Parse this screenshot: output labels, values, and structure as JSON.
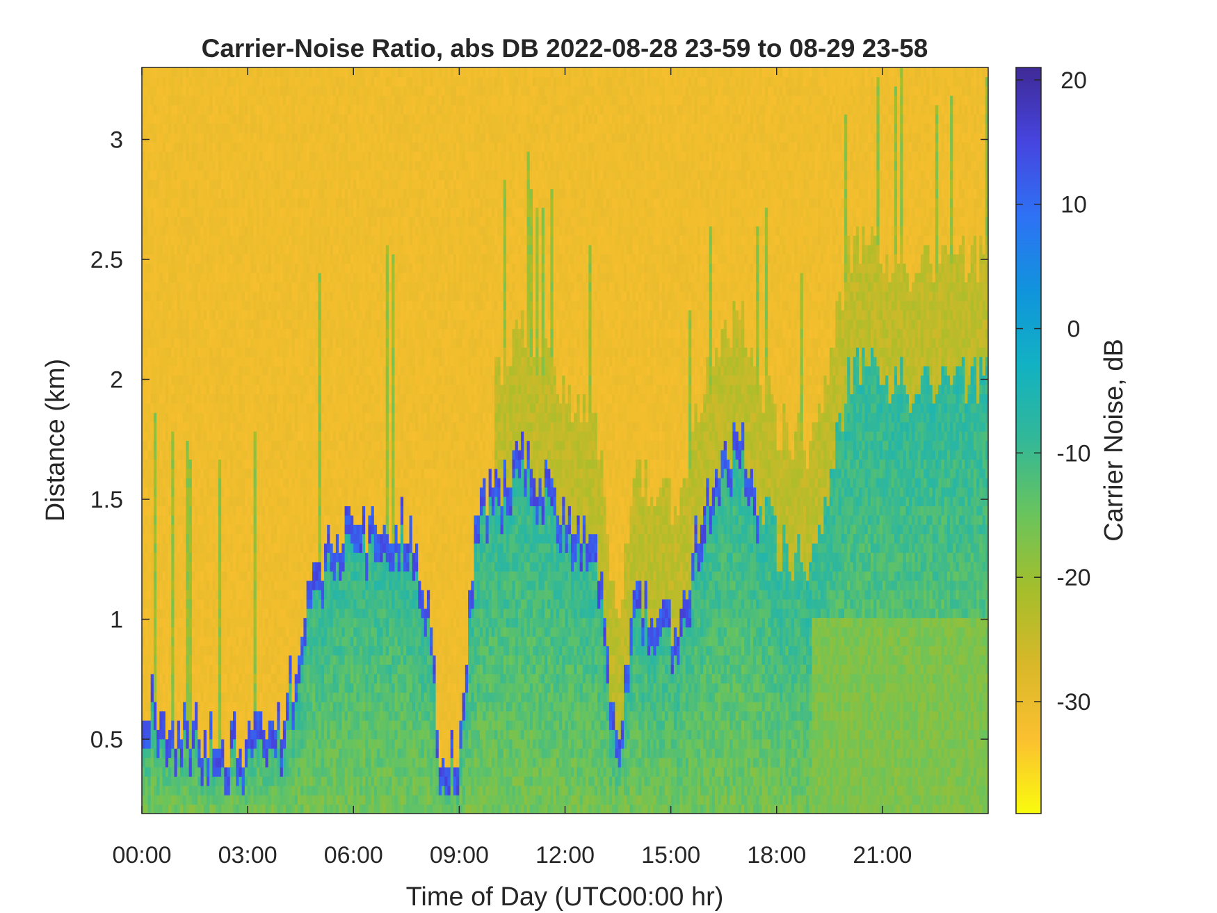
{
  "chart_data": {
    "type": "heatmap",
    "title": "Carrier-Noise Ratio, abs DB 2022-08-28 23-59 to 08-29 23-58",
    "xlabel": "Time of Day (UTC00:00 hr)",
    "ylabel": "Distance (km)",
    "x_ticks": [
      "00:00",
      "03:00",
      "06:00",
      "09:00",
      "12:00",
      "15:00",
      "18:00",
      "21:00"
    ],
    "x_tick_hours": [
      0,
      3,
      6,
      9,
      12,
      15,
      18,
      21
    ],
    "xlim_hours": [
      0,
      24
    ],
    "y_ticks": [
      "0.5",
      "1",
      "1.5",
      "2",
      "2.5",
      "3"
    ],
    "y_tick_values": [
      0.5,
      1,
      1.5,
      2,
      2.5,
      3
    ],
    "ylim_km": [
      0.19,
      3.3
    ],
    "colorbar": {
      "label": "Carrier Noise, dB",
      "ticks": [
        "-30",
        "-20",
        "-10",
        "0",
        "10",
        "20"
      ],
      "tick_values": [
        -30,
        -20,
        -10,
        0,
        10,
        20
      ],
      "limits": [
        -39,
        21
      ],
      "colormap": "parula (reversed)",
      "colors_low_to_high": [
        "#f9fb0e",
        "#fbc030",
        "#d8b829",
        "#a5be2b",
        "#6ac45c",
        "#33b897",
        "#12b2c2",
        "#1094dc",
        "#2e72f5",
        "#4645e0",
        "#3f2a96"
      ]
    },
    "grid": false,
    "series_profile": {
      "description_hours": [
        0,
        0.5,
        1,
        2,
        3,
        4,
        5,
        6,
        7,
        7.5,
        8,
        8.5,
        9,
        9.5,
        10,
        11,
        12,
        12.5,
        13,
        13.5,
        14,
        15,
        16,
        16.5,
        17,
        18,
        19,
        20,
        21,
        22,
        23,
        24
      ],
      "boundary_layer_top_km": [
        0.7,
        0.62,
        0.55,
        0.52,
        0.48,
        0.6,
        1.25,
        1.45,
        1.3,
        1.45,
        1.2,
        0.42,
        0.45,
        1.45,
        1.55,
        1.7,
        1.45,
        1.35,
        1.2,
        0.4,
        1.1,
        0.95,
        1.45,
        1.7,
        1.75,
        1.3,
        1.25,
        2.0,
        2.05,
        1.95,
        2.0,
        2.0
      ]
    }
  }
}
